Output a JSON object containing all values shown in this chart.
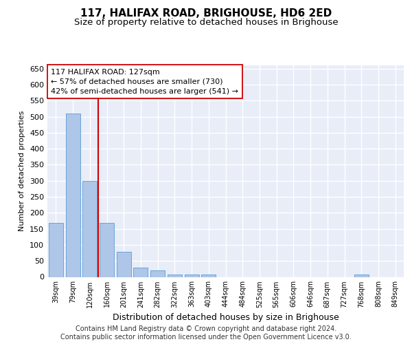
{
  "title": "117, HALIFAX ROAD, BRIGHOUSE, HD6 2ED",
  "subtitle": "Size of property relative to detached houses in Brighouse",
  "xlabel": "Distribution of detached houses by size in Brighouse",
  "ylabel": "Number of detached properties",
  "categories": [
    "39sqm",
    "79sqm",
    "120sqm",
    "160sqm",
    "201sqm",
    "241sqm",
    "282sqm",
    "322sqm",
    "363sqm",
    "403sqm",
    "444sqm",
    "484sqm",
    "525sqm",
    "565sqm",
    "606sqm",
    "646sqm",
    "687sqm",
    "727sqm",
    "768sqm",
    "808sqm",
    "849sqm"
  ],
  "values": [
    168,
    510,
    300,
    168,
    78,
    30,
    20,
    8,
    8,
    8,
    0,
    0,
    0,
    0,
    0,
    0,
    0,
    0,
    8,
    0,
    0
  ],
  "bar_color": "#aec6e8",
  "bar_edgecolor": "#5b9bd5",
  "vline_x_index": 2,
  "vline_color": "#cc0000",
  "annotation_text": "117 HALIFAX ROAD: 127sqm\n← 57% of detached houses are smaller (730)\n42% of semi-detached houses are larger (541) →",
  "annotation_box_color": "#ffffff",
  "annotation_box_edgecolor": "#cc0000",
  "ylim": [
    0,
    660
  ],
  "yticks": [
    0,
    50,
    100,
    150,
    200,
    250,
    300,
    350,
    400,
    450,
    500,
    550,
    600,
    650
  ],
  "bg_color": "#ffffff",
  "axes_bg_color": "#e8edf8",
  "grid_color": "#ffffff",
  "footer_text": "Contains HM Land Registry data © Crown copyright and database right 2024.\nContains public sector information licensed under the Open Government Licence v3.0.",
  "title_fontsize": 11,
  "subtitle_fontsize": 9.5,
  "annotation_fontsize": 8,
  "footer_fontsize": 7,
  "ylabel_fontsize": 8,
  "xlabel_fontsize": 9
}
